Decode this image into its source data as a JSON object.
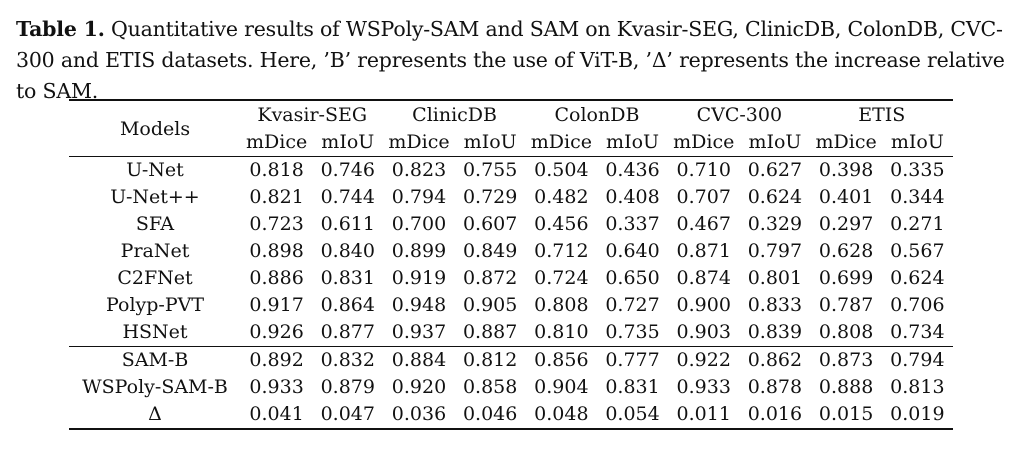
{
  "caption": {
    "label": "Table 1.",
    "text": " Quantitative results of WSPoly-SAM and SAM on Kvasir-SEG, ClinicDB, ColonDB, CVC-300 and ETIS datasets. Here, ’B’ represents the use of ViT-B, ’Δ’ represents the increase relative to SAM."
  },
  "table": {
    "models_header": "Models",
    "datasets": [
      "Kvasir-SEG",
      "ClinicDB",
      "ColonDB",
      "CVC-300",
      "ETIS"
    ],
    "metrics": [
      "mDice",
      "mIoU",
      "mDice",
      "mIoU",
      "mDice",
      "mIoU",
      "mDice",
      "mIoU",
      "mDice",
      "mIoU"
    ],
    "group1": [
      {
        "model": "U-Net",
        "values": [
          "0.818",
          "0.746",
          "0.823",
          "0.755",
          "0.504",
          "0.436",
          "0.710",
          "0.627",
          "0.398",
          "0.335"
        ],
        "bold": []
      },
      {
        "model": "U-Net++",
        "values": [
          "0.821",
          "0.744",
          "0.794",
          "0.729",
          "0.482",
          "0.408",
          "0.707",
          "0.624",
          "0.401",
          "0.344"
        ],
        "bold": []
      },
      {
        "model": "SFA",
        "values": [
          "0.723",
          "0.611",
          "0.700",
          "0.607",
          "0.456",
          "0.337",
          "0.467",
          "0.329",
          "0.297",
          "0.271"
        ],
        "bold": []
      },
      {
        "model": "PraNet",
        "values": [
          "0.898",
          "0.840",
          "0.899",
          "0.849",
          "0.712",
          "0.640",
          "0.871",
          "0.797",
          "0.628",
          "0.567"
        ],
        "bold": []
      },
      {
        "model": "C2FNet",
        "values": [
          "0.886",
          "0.831",
          "0.919",
          "0.872",
          "0.724",
          "0.650",
          "0.874",
          "0.801",
          "0.699",
          "0.624"
        ],
        "bold": []
      },
      {
        "model": "Polyp-PVT",
        "values": [
          "0.917",
          "0.864",
          "0.948",
          "0.905",
          "0.808",
          "0.727",
          "0.900",
          "0.833",
          "0.787",
          "0.706"
        ],
        "bold": [
          2,
          3
        ]
      },
      {
        "model": "HSNet",
        "values": [
          "0.926",
          "0.877",
          "0.937",
          "0.887",
          "0.810",
          "0.735",
          "0.903",
          "0.839",
          "0.808",
          "0.734"
        ],
        "bold": []
      }
    ],
    "group2": [
      {
        "model": "SAM-B",
        "values": [
          "0.892",
          "0.832",
          "0.884",
          "0.812",
          "0.856",
          "0.777",
          "0.922",
          "0.862",
          "0.873",
          "0.794"
        ],
        "bold": []
      },
      {
        "model": "WSPoly-SAM-B",
        "values": [
          "0.933",
          "0.879",
          "0.920",
          "0.858",
          "0.904",
          "0.831",
          "0.933",
          "0.878",
          "0.888",
          "0.813"
        ],
        "bold": [
          0,
          1,
          4,
          5,
          6,
          7,
          8,
          9
        ]
      },
      {
        "model": "Δ",
        "values": [
          "0.041",
          "0.047",
          "0.036",
          "0.046",
          "0.048",
          "0.054",
          "0.011",
          "0.016",
          "0.015",
          "0.019"
        ],
        "bold": []
      }
    ]
  }
}
